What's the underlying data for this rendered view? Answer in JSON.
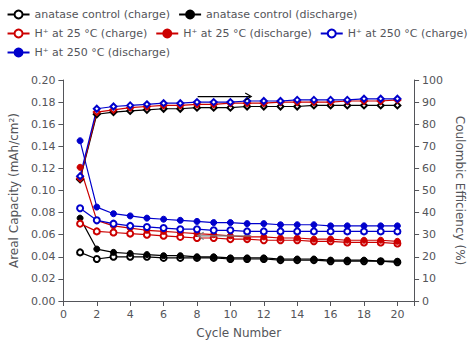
{
  "chart_data": {
    "type": "line",
    "xlabel": "Cycle Number",
    "ylabel": "Areal Capacity (mAh/cm²)",
    "y2label": "Coulombic Efficiency (%)",
    "x": [
      1,
      2,
      3,
      4,
      5,
      6,
      7,
      8,
      9,
      10,
      11,
      12,
      13,
      14,
      15,
      16,
      17,
      18,
      19,
      20
    ],
    "xlim": [
      0,
      21
    ],
    "xticks": [
      0,
      2,
      4,
      6,
      8,
      10,
      12,
      14,
      16,
      18,
      20
    ],
    "ylim": [
      0.0,
      0.2
    ],
    "yticks": [
      {
        "value": 0.0,
        "label": "0.00"
      },
      0.02,
      0.04,
      0.06,
      0.08,
      {
        "value": 0.1,
        "label": "0.10"
      },
      0.12,
      0.14,
      0.16,
      0.18,
      {
        "value": 0.2,
        "label": "0.20"
      }
    ],
    "y2lim": [
      0,
      100
    ],
    "y2ticks": [
      0,
      10,
      20,
      30,
      40,
      50,
      60,
      70,
      80,
      90,
      100
    ],
    "grid": false,
    "legend": "top",
    "series": [
      {
        "name": "anatase control (charge)",
        "color": "#000000",
        "marker": "open_circle",
        "values": [
          0.044,
          0.038,
          0.04,
          0.04,
          0.04,
          0.039,
          0.039,
          0.039,
          0.039,
          0.038,
          0.038,
          0.038,
          0.037,
          0.037,
          0.037,
          0.036,
          0.036,
          0.036,
          0.036,
          0.035
        ]
      },
      {
        "name": "anatase control (discharge)",
        "color": "#000000",
        "marker": "circle",
        "values": [
          0.075,
          0.047,
          0.044,
          0.043,
          0.042,
          0.041,
          0.041,
          0.04,
          0.04,
          0.039,
          0.039,
          0.039,
          0.038,
          0.038,
          0.038,
          0.037,
          0.037,
          0.037,
          0.036,
          0.036
        ]
      },
      {
        "name": "H⁺ at 25 °C (charge)",
        "color": "#cc0000",
        "marker": "open_circle",
        "values": [
          0.07,
          0.063,
          0.062,
          0.061,
          0.06,
          0.059,
          0.058,
          0.057,
          0.057,
          0.056,
          0.056,
          0.055,
          0.055,
          0.055,
          0.054,
          0.054,
          0.053,
          0.053,
          0.053,
          0.052
        ]
      },
      {
        "name": "H⁺ at 25 °C (discharge)",
        "color": "#cc0000",
        "marker": "circle",
        "values": [
          0.121,
          0.073,
          0.068,
          0.066,
          0.064,
          0.063,
          0.062,
          0.061,
          0.06,
          0.059,
          0.058,
          0.058,
          0.057,
          0.057,
          0.056,
          0.056,
          0.055,
          0.055,
          0.055,
          0.054
        ]
      },
      {
        "name": "H⁺ at 250 °C (charge)",
        "color": "#0000cc",
        "marker": "open_circle",
        "values": [
          0.084,
          0.073,
          0.07,
          0.068,
          0.067,
          0.066,
          0.065,
          0.065,
          0.064,
          0.064,
          0.063,
          0.063,
          0.063,
          0.063,
          0.063,
          0.063,
          0.063,
          0.063,
          0.063,
          0.063
        ]
      },
      {
        "name": "H⁺ at 250 °C (discharge)",
        "color": "#0000cc",
        "marker": "circle",
        "values": [
          0.145,
          0.085,
          0.079,
          0.077,
          0.075,
          0.074,
          0.073,
          0.072,
          0.071,
          0.071,
          0.07,
          0.07,
          0.069,
          0.069,
          0.069,
          0.068,
          0.068,
          0.068,
          0.068,
          0.068
        ]
      },
      {
        "color": "#000000",
        "marker": "open_diamond",
        "values": [
          0.11,
          0.169,
          0.171,
          0.172,
          0.173,
          0.174,
          0.174,
          0.175,
          0.175,
          0.175,
          0.176,
          0.176,
          0.176,
          0.176,
          0.177,
          0.177,
          0.177,
          0.177,
          0.177,
          0.177
        ]
      },
      {
        "color": "#cc0000",
        "marker": "open_diamond",
        "values": [
          0.111,
          0.171,
          0.173,
          0.175,
          0.176,
          0.177,
          0.177,
          0.178,
          0.178,
          0.179,
          0.179,
          0.179,
          0.18,
          0.18,
          0.18,
          0.18,
          0.181,
          0.181,
          0.181,
          0.182
        ]
      },
      {
        "color": "#0000cc",
        "marker": "open_diamond",
        "values": [
          0.113,
          0.174,
          0.176,
          0.177,
          0.178,
          0.179,
          0.179,
          0.18,
          0.18,
          0.18,
          0.181,
          0.181,
          0.181,
          0.182,
          0.182,
          0.182,
          0.182,
          0.183,
          0.183,
          0.183
        ]
      }
    ]
  }
}
